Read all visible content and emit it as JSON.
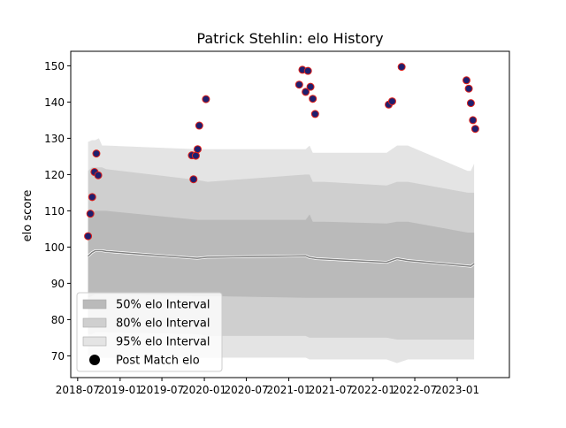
{
  "chart_data": {
    "type": "scatter",
    "title": "Patrick Stehlin: elo History",
    "xlabel": "",
    "ylabel": "elo score",
    "xlim": [
      "2018-06-01",
      "2023-08-15"
    ],
    "ylim": [
      64,
      154
    ],
    "x_ticks": [
      "2018-07-01",
      "2019-01-01",
      "2019-07-01",
      "2020-01-01",
      "2020-07-01",
      "2021-01-01",
      "2021-07-01",
      "2022-01-01",
      "2022-07-01",
      "2023-01-01"
    ],
    "x_tick_labels": [
      "2018-07",
      "2019-01",
      "2019-07",
      "2020-01",
      "2020-07",
      "2021-01",
      "2021-07",
      "2022-01",
      "2022-07",
      "2023-01"
    ],
    "y_ticks": [
      70,
      80,
      90,
      100,
      110,
      120,
      130,
      140,
      150
    ],
    "y_tick_labels": [
      "70",
      "80",
      "90",
      "100",
      "110",
      "120",
      "130",
      "140",
      "150"
    ],
    "legend": {
      "placement": "lower-left",
      "entries": [
        "50% elo Interval",
        "80% elo Interval",
        "95% elo Interval",
        "Post Match elo"
      ]
    },
    "colors": {
      "band95": "#e4e4e4",
      "band80": "#cfcfcf",
      "band50": "#bababa",
      "mean_line": "#808080",
      "point_face": "#1f1f6e",
      "point_edge": "#e0201a"
    },
    "band_dates": [
      "2018-08-15",
      "2018-09-01",
      "2018-09-15",
      "2018-10-01",
      "2018-10-15",
      "2018-11-01",
      "2019-12-01",
      "2020-01-15",
      "2021-03-15",
      "2021-04-01",
      "2021-04-15",
      "2021-05-01",
      "2021-06-01",
      "2022-03-01",
      "2022-04-15",
      "2022-06-01",
      "2023-02-15",
      "2023-03-01",
      "2023-03-15"
    ],
    "mean": [
      97.5,
      98.5,
      99.0,
      99.0,
      99.0,
      98.8,
      96.9,
      97.2,
      97.6,
      97.1,
      97.0,
      96.8,
      96.7,
      95.8,
      96.8,
      96.3,
      94.8,
      94.7,
      95.4
    ],
    "band50_upper": [
      109,
      109.5,
      110,
      110,
      110,
      110,
      107.5,
      107.5,
      107.5,
      109,
      107,
      107,
      107,
      106.5,
      107,
      107,
      104,
      104,
      104
    ],
    "band50_lower": [
      86,
      86.5,
      87,
      87,
      87,
      87,
      86.5,
      86.5,
      86,
      86,
      86,
      86,
      86,
      86,
      86,
      86,
      86,
      86,
      86
    ],
    "band80_upper": [
      121,
      122,
      122,
      122,
      122,
      121.5,
      118.5,
      118,
      120,
      120,
      118,
      118,
      118,
      117,
      118,
      118,
      115,
      115,
      115
    ],
    "band80_lower": [
      76,
      76,
      76.5,
      76.5,
      76.5,
      76.5,
      76,
      75.5,
      75.5,
      75,
      75,
      75,
      75,
      75,
      74.5,
      74.5,
      74.5,
      74.5,
      74.5
    ],
    "band95_upper": [
      129,
      129.5,
      129.5,
      130,
      128,
      128,
      127,
      127,
      127,
      128,
      126,
      126,
      126,
      126,
      128,
      128,
      121,
      121,
      123
    ],
    "band95_lower": [
      70,
      70,
      69.5,
      69.5,
      69.5,
      69.5,
      69.5,
      69.5,
      69.5,
      69,
      69,
      69,
      69,
      69,
      68,
      69,
      69,
      69,
      69
    ],
    "points": [
      {
        "x": "2018-08-15",
        "y": 103
      },
      {
        "x": "2018-08-25",
        "y": 109.2
      },
      {
        "x": "2018-09-02",
        "y": 113.8
      },
      {
        "x": "2018-09-12",
        "y": 120.7
      },
      {
        "x": "2018-09-20",
        "y": 125.8
      },
      {
        "x": "2018-09-28",
        "y": 119.8
      },
      {
        "x": "2019-11-08",
        "y": 125.3
      },
      {
        "x": "2019-11-15",
        "y": 118.7
      },
      {
        "x": "2019-11-25",
        "y": 125.2
      },
      {
        "x": "2019-12-03",
        "y": 127
      },
      {
        "x": "2019-12-10",
        "y": 133.5
      },
      {
        "x": "2020-01-08",
        "y": 140.8
      },
      {
        "x": "2021-02-15",
        "y": 144.8
      },
      {
        "x": "2021-03-01",
        "y": 148.9
      },
      {
        "x": "2021-03-15",
        "y": 142.8
      },
      {
        "x": "2021-03-25",
        "y": 148.6
      },
      {
        "x": "2021-04-05",
        "y": 144.2
      },
      {
        "x": "2021-04-15",
        "y": 140.9
      },
      {
        "x": "2021-04-25",
        "y": 136.7
      },
      {
        "x": "2022-03-10",
        "y": 139.3
      },
      {
        "x": "2022-03-25",
        "y": 140.2
      },
      {
        "x": "2022-05-05",
        "y": 149.7
      },
      {
        "x": "2023-02-10",
        "y": 146
      },
      {
        "x": "2023-02-20",
        "y": 143.7
      },
      {
        "x": "2023-03-01",
        "y": 139.7
      },
      {
        "x": "2023-03-10",
        "y": 135
      },
      {
        "x": "2023-03-20",
        "y": 132.6
      }
    ]
  }
}
